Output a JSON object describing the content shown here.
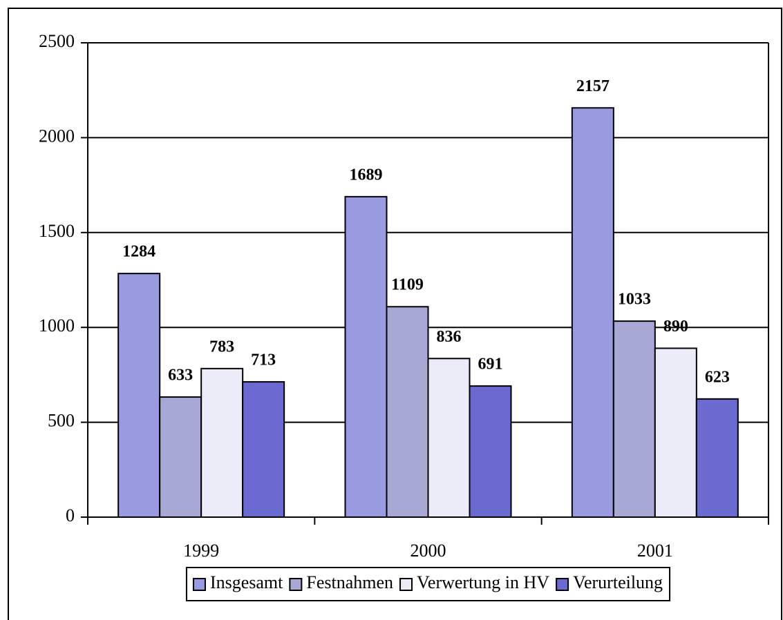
{
  "chart_data": {
    "type": "bar",
    "categories": [
      "1999",
      "2000",
      "2001"
    ],
    "series": [
      {
        "name": "Insgesamt",
        "color": "#9a9ae0",
        "values": [
          1284,
          1689,
          2157
        ]
      },
      {
        "name": "Festnahmen",
        "color": "#a8a8d4",
        "values": [
          633,
          1109,
          1033
        ]
      },
      {
        "name": "Verwertung in HV",
        "color": "#ececf8",
        "values": [
          783,
          836,
          890
        ]
      },
      {
        "name": "Verurteilung",
        "color": "#6a6ad0",
        "values": [
          713,
          691,
          623
        ]
      }
    ],
    "ylim": [
      0,
      2500
    ],
    "yticks": [
      0,
      500,
      1000,
      1500,
      2000,
      2500
    ],
    "grid": true,
    "legend": "bottom"
  }
}
